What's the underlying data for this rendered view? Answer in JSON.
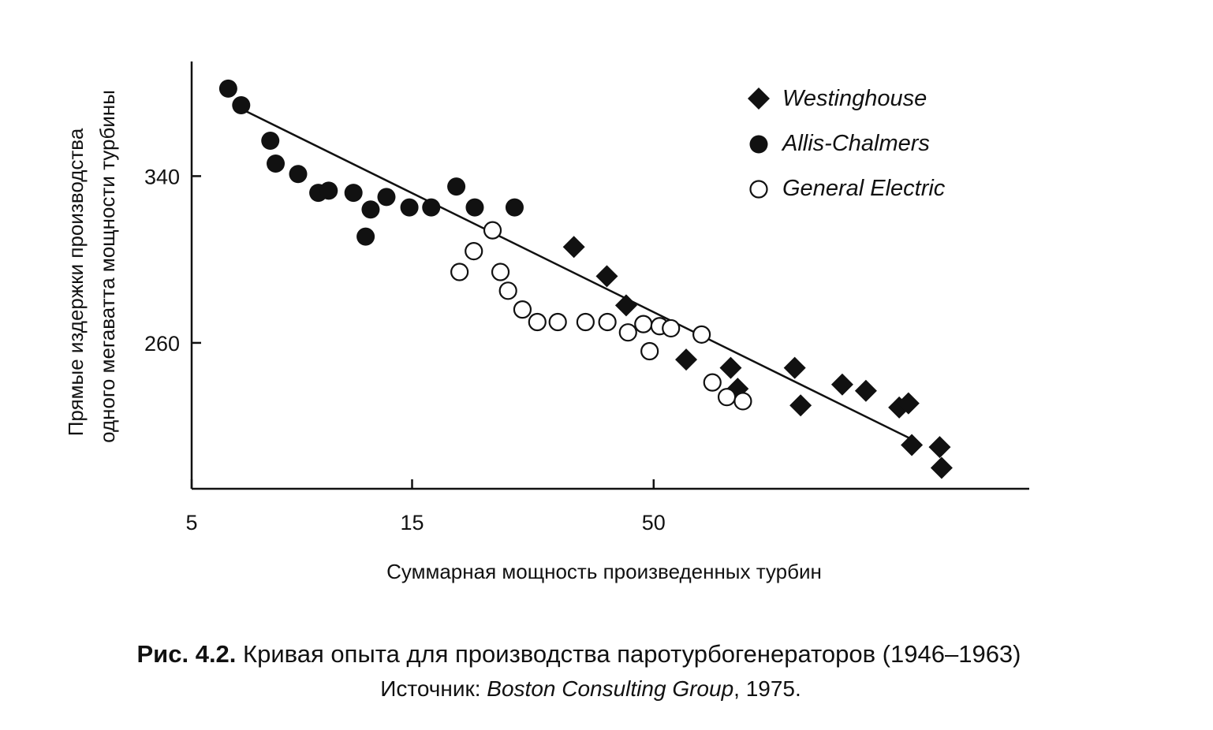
{
  "chart_data": {
    "type": "scatter",
    "title": "",
    "xlabel": "Суммарная мощность произведенных турбин",
    "ylabel_lines": [
      "Прямые издержки производства",
      "одного мегаватта мощности турбины"
    ],
    "x_scale": "log",
    "x_ticks": [
      5,
      15,
      50
    ],
    "y_ticks": [
      260,
      340
    ],
    "xlim": [
      5,
      325
    ],
    "ylim": [
      190,
      395
    ],
    "grid": false,
    "legend_position": "top-right",
    "series": [
      {
        "name": "Westinghouse",
        "marker": "diamond-filled",
        "points": [
          [
            33.6,
            306
          ],
          [
            39.6,
            292
          ],
          [
            43.6,
            278
          ],
          [
            58.8,
            252
          ],
          [
            73.4,
            248
          ],
          [
            76.0,
            238
          ],
          [
            101,
            248
          ],
          [
            104,
            230
          ],
          [
            128,
            240
          ],
          [
            144,
            237
          ],
          [
            170,
            229
          ],
          [
            178,
            231
          ],
          [
            181,
            211
          ],
          [
            208,
            210
          ],
          [
            210,
            200
          ]
        ]
      },
      {
        "name": "Allis-Chalmers",
        "marker": "circle-filled",
        "points": [
          [
            6.0,
            382
          ],
          [
            6.4,
            374
          ],
          [
            7.4,
            357
          ],
          [
            7.6,
            346
          ],
          [
            8.5,
            341
          ],
          [
            9.4,
            332
          ],
          [
            9.9,
            333
          ],
          [
            11.2,
            332
          ],
          [
            11.9,
            311
          ],
          [
            12.2,
            324
          ],
          [
            13.2,
            330
          ],
          [
            14.8,
            325
          ],
          [
            16.5,
            325
          ],
          [
            18.7,
            335
          ],
          [
            20.5,
            325
          ],
          [
            25.0,
            325
          ]
        ]
      },
      {
        "name": "General Electric",
        "marker": "circle-open",
        "points": [
          [
            19.0,
            294
          ],
          [
            20.4,
            304
          ],
          [
            22.4,
            314
          ],
          [
            23.3,
            294
          ],
          [
            24.2,
            285
          ],
          [
            26.0,
            276
          ],
          [
            28.0,
            270
          ],
          [
            31.0,
            270
          ],
          [
            35.6,
            270
          ],
          [
            39.7,
            270
          ],
          [
            44.0,
            265
          ],
          [
            47.5,
            269
          ],
          [
            49.0,
            256
          ],
          [
            51.5,
            268
          ],
          [
            54.5,
            267
          ],
          [
            63.5,
            264
          ],
          [
            67.0,
            241
          ],
          [
            72.0,
            234
          ],
          [
            78.0,
            232
          ]
        ]
      }
    ],
    "trendline": {
      "points": [
        [
          6.3,
          373
        ],
        [
          180,
          214
        ]
      ]
    }
  },
  "caption": {
    "fig_label": "Рис. 4.2.",
    "text": " Кривая опыта для производства паротурбогенераторов (1946–1963)",
    "source_prefix": "Источник: ",
    "source_name": "Boston Consulting Group",
    "source_suffix": ", 1975."
  }
}
